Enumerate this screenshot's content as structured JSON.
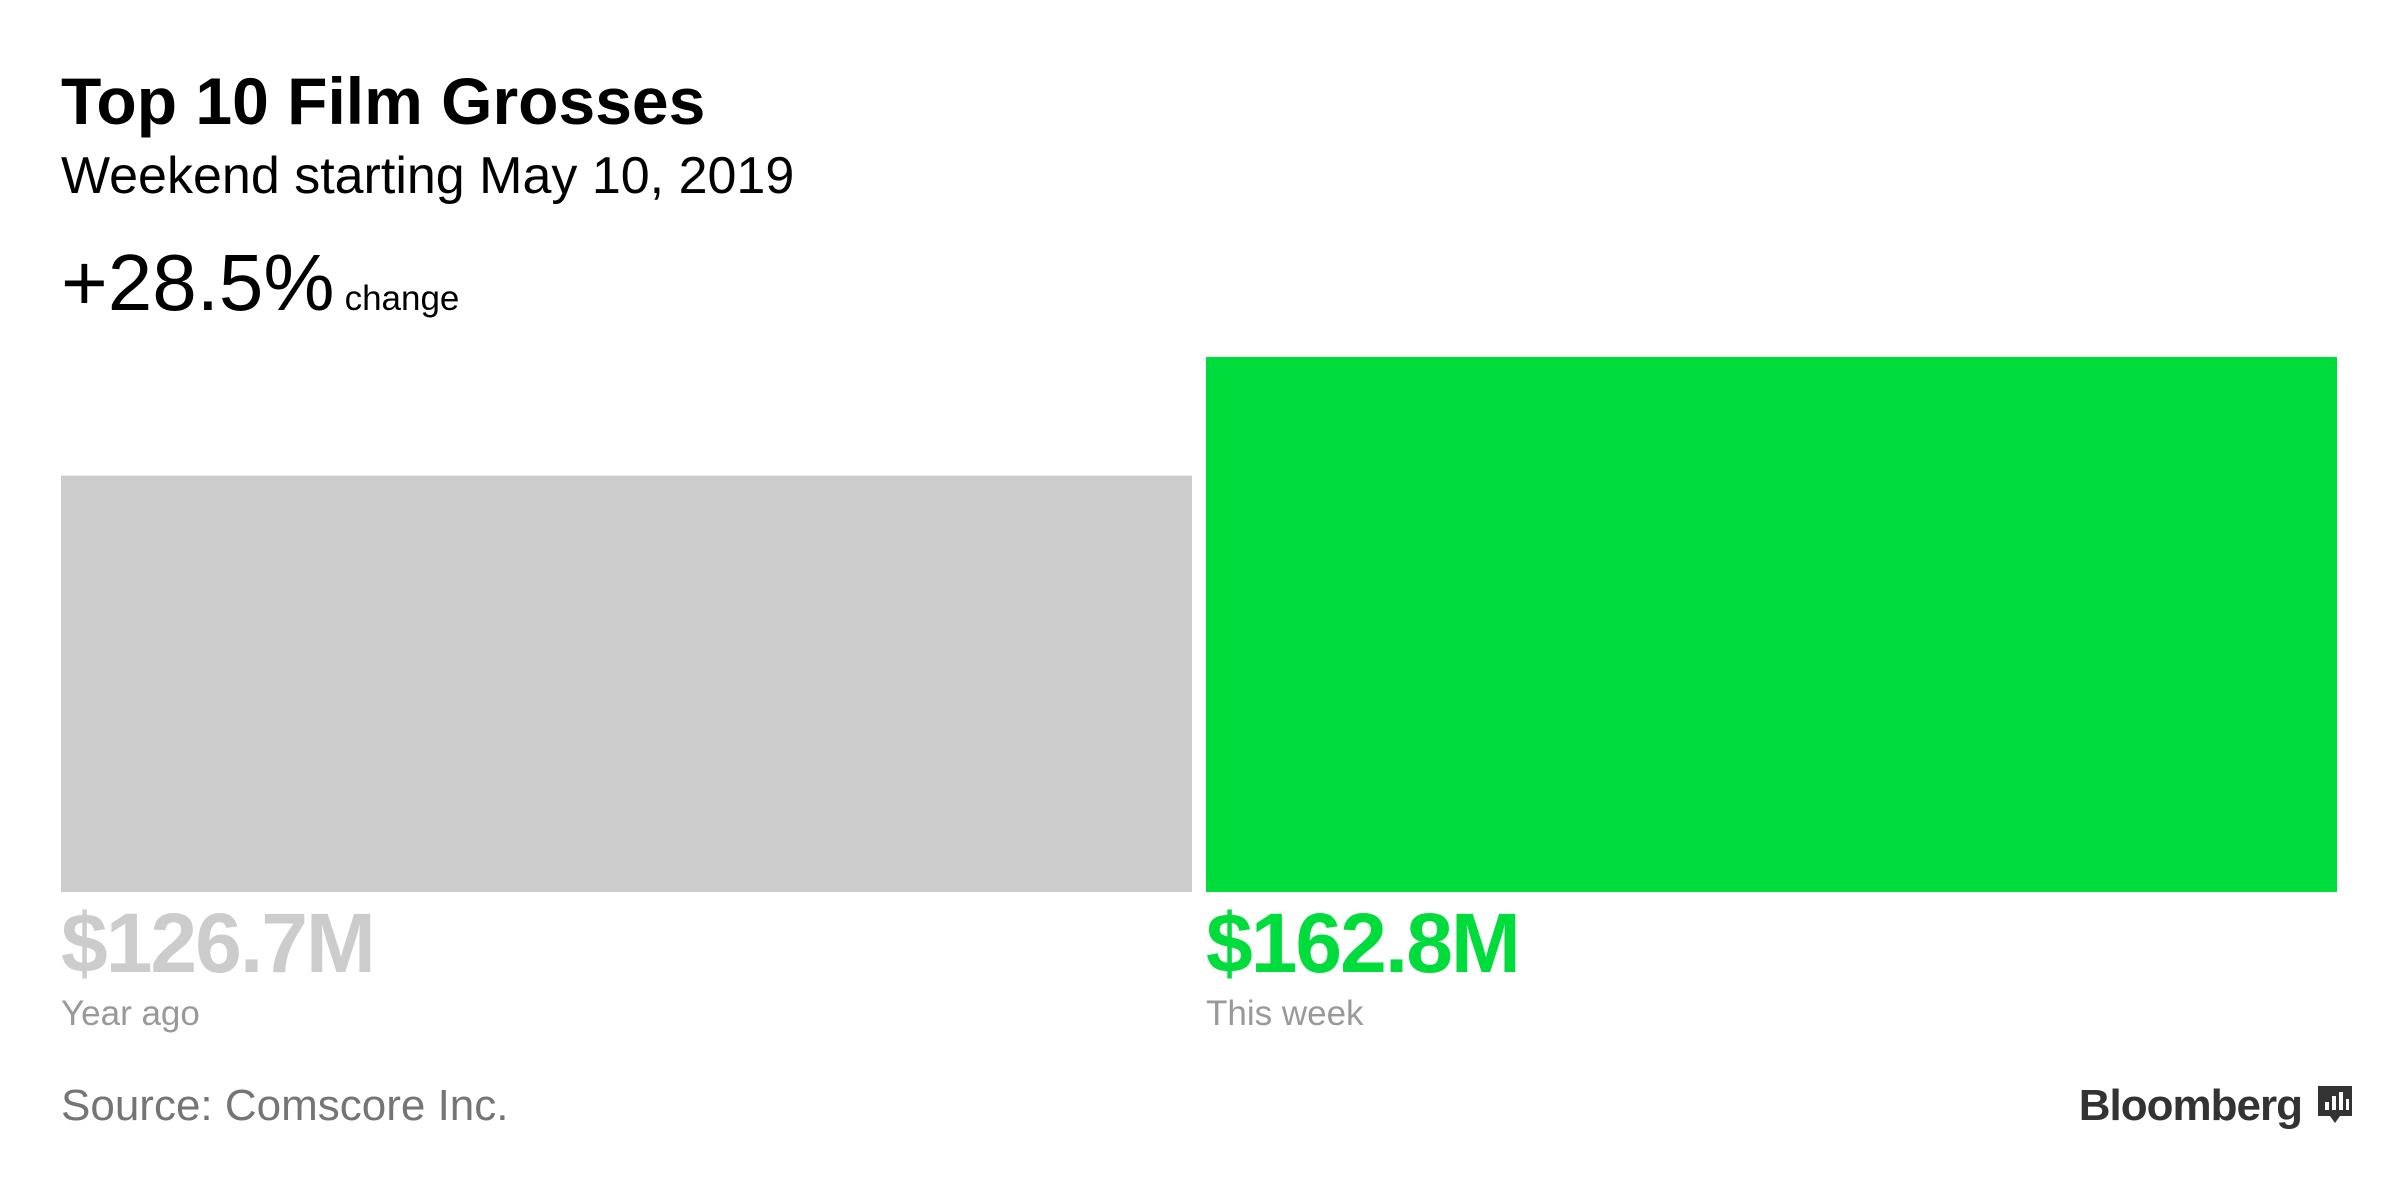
{
  "chart_data": {
    "type": "bar",
    "title": "Top 10 Film Grosses",
    "subtitle": "Weekend starting May 10, 2019",
    "change": "+28.5%",
    "change_caption": "change",
    "categories": [
      "Year ago",
      "This week"
    ],
    "values": [
      126.7,
      162.8
    ],
    "value_labels": [
      "$126.7M",
      "$162.8M"
    ],
    "colors": [
      "#cccccc",
      "#00dc3c"
    ],
    "ylim": [
      0,
      162.8
    ],
    "source": "Source: Comscore Inc.",
    "brand": "Bloomberg"
  }
}
